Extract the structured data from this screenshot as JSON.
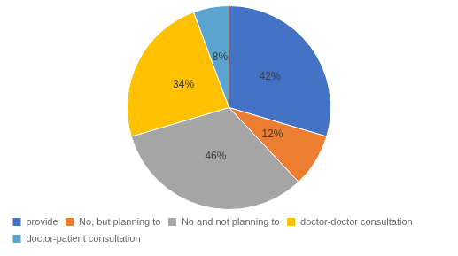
{
  "chart_data": {
    "type": "pie",
    "categories": [
      "provide",
      "No, but planning to",
      "No and not planning to",
      "doctor-doctor consultation",
      "doctor-patient consultation"
    ],
    "values": [
      42,
      12,
      46,
      34,
      8
    ],
    "value_labels": [
      "42%",
      "12%",
      "46%",
      "34%",
      "8%"
    ],
    "colors": [
      "#4472C4",
      "#ED7D31",
      "#A5A5A5",
      "#FFC000",
      "#5BA3D0"
    ],
    "data_labels": true,
    "legend": "lower left"
  }
}
